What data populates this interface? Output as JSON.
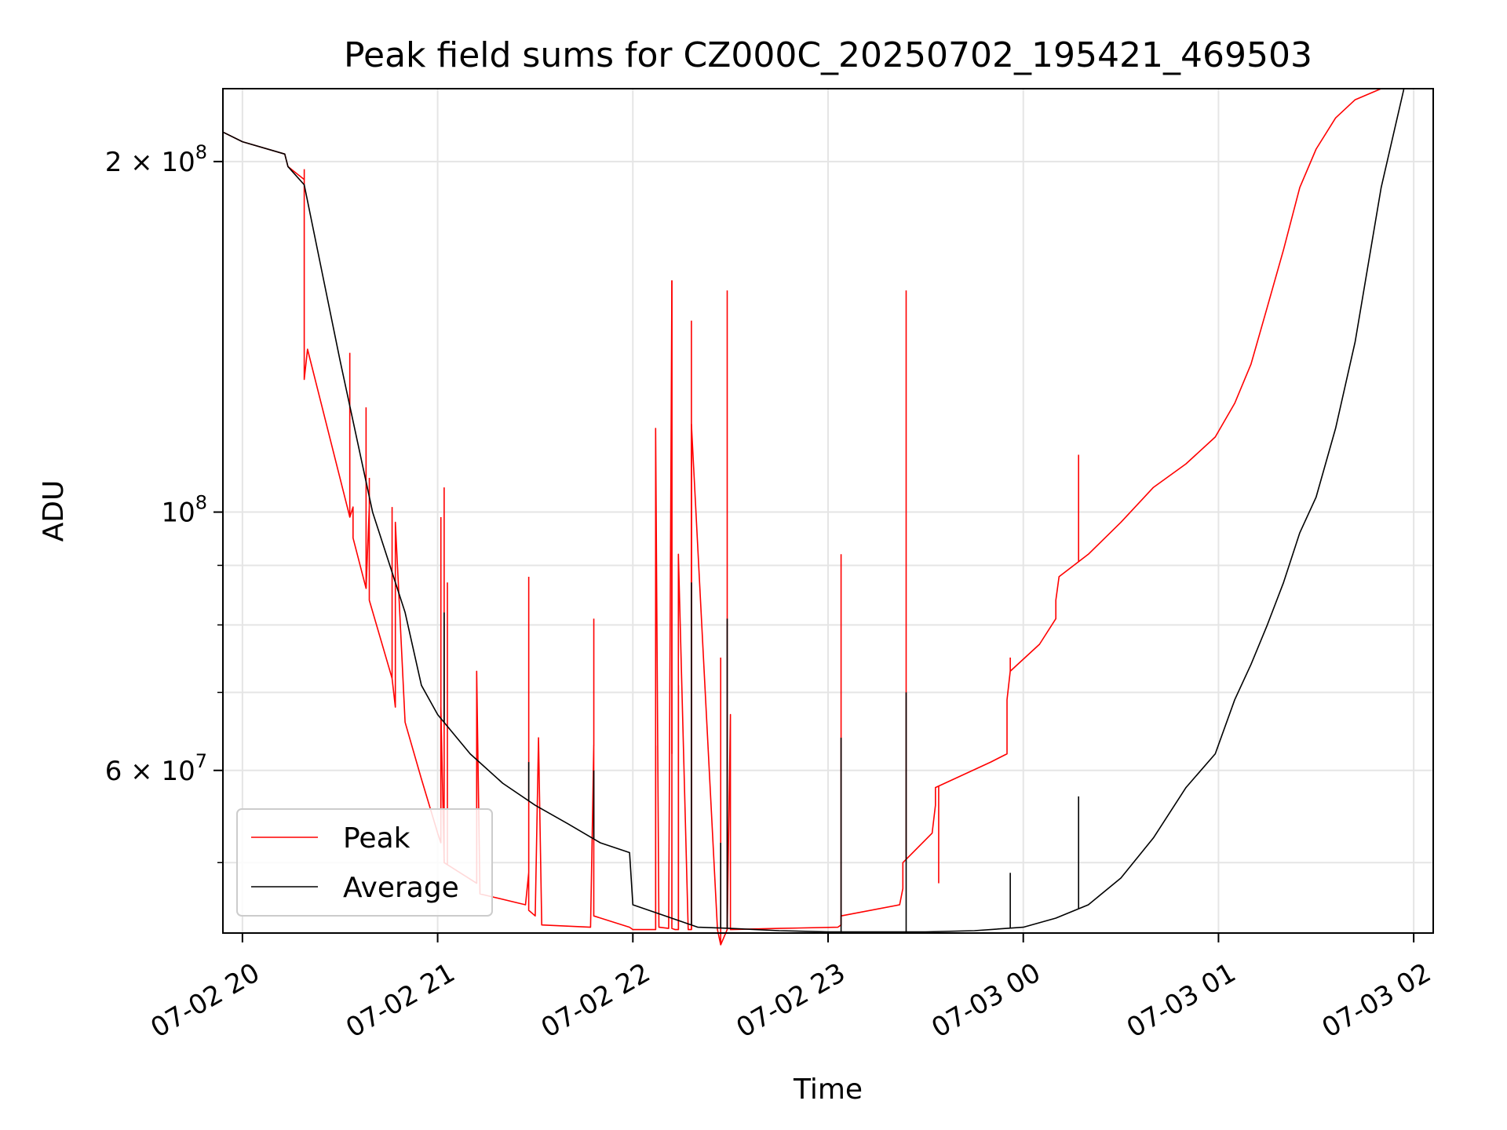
{
  "chart_data": {
    "type": "line",
    "title": "Peak field sums for CZ000C_20250702_195421_469503",
    "xlabel": "Time",
    "ylabel": "ADU",
    "x_scale": "time",
    "y_scale": "log",
    "xlim": [
      "2025-07-02 19:54",
      "2025-07-03 02:06"
    ],
    "ylim": [
      43500000,
      231000000
    ],
    "x_ticks": [
      {
        "value": "2025-07-02 20:00",
        "label": "07-02 20"
      },
      {
        "value": "2025-07-02 21:00",
        "label": "07-02 21"
      },
      {
        "value": "2025-07-02 22:00",
        "label": "07-02 22"
      },
      {
        "value": "2025-07-02 23:00",
        "label": "07-02 23"
      },
      {
        "value": "2025-07-03 00:00",
        "label": "07-03 00"
      },
      {
        "value": "2025-07-03 01:00",
        "label": "07-03 01"
      },
      {
        "value": "2025-07-03 02:00",
        "label": "07-03 02"
      }
    ],
    "y_major_ticks": [
      {
        "value": 100000000,
        "base": "10",
        "exp": "8"
      },
      {
        "value": 200000000,
        "base": "2 × 10",
        "exp": "8"
      },
      {
        "value": 60000000,
        "base": "6 × 10",
        "exp": "7"
      }
    ],
    "y_minor_ticks": [
      50000000,
      70000000,
      80000000,
      90000000
    ],
    "grid": true,
    "legend": {
      "position": "lower-left",
      "entries": [
        "Peak",
        "Average"
      ]
    },
    "series": [
      {
        "name": "Peak",
        "color": "#ff0000",
        "x": [
          "2025-07-02 19:54",
          "2025-07-02 20:00",
          "2025-07-02 20:13",
          "2025-07-02 20:14",
          "2025-07-02 20:19",
          "2025-07-02 20:19",
          "2025-07-02 20:20",
          "2025-07-02 20:33",
          "2025-07-02 20:34",
          "2025-07-02 20:34",
          "2025-07-02 20:38",
          "2025-07-02 20:39",
          "2025-07-02 20:39",
          "2025-07-02 20:46",
          "2025-07-02 20:47",
          "2025-07-02 20:47",
          "2025-07-02 20:50",
          "2025-07-02 20:55",
          "2025-07-02 21:00",
          "2025-07-02 21:01",
          "2025-07-02 21:01",
          "2025-07-02 21:02",
          "2025-07-02 21:12",
          "2025-07-02 21:12",
          "2025-07-02 21:13",
          "2025-07-02 21:27",
          "2025-07-02 21:28",
          "2025-07-02 21:28",
          "2025-07-02 21:30",
          "2025-07-02 21:31",
          "2025-07-02 21:32",
          "2025-07-02 21:47",
          "2025-07-02 21:48",
          "2025-07-02 21:48",
          "2025-07-02 21:59",
          "2025-07-02 22:00",
          "2025-07-02 22:07",
          "2025-07-02 22:07",
          "2025-07-02 22:08",
          "2025-07-02 22:11",
          "2025-07-02 22:12",
          "2025-07-02 22:12",
          "2025-07-02 22:13",
          "2025-07-02 22:14",
          "2025-07-02 22:14",
          "2025-07-02 22:17",
          "2025-07-02 22:18",
          "2025-07-02 22:18",
          "2025-07-02 22:26",
          "2025-07-02 22:26",
          "2025-07-02 22:27",
          "2025-07-02 22:29",
          "2025-07-02 22:30",
          "2025-07-02 22:30",
          "2025-07-02 22:45",
          "2025-07-02 23:03",
          "2025-07-02 23:04",
          "2025-07-02 23:04",
          "2025-07-02 23:22",
          "2025-07-02 23:23",
          "2025-07-02 23:23",
          "2025-07-02 23:32",
          "2025-07-02 23:33",
          "2025-07-02 23:33",
          "2025-07-02 23:50",
          "2025-07-02 23:55",
          "2025-07-02 23:55",
          "2025-07-02 23:56",
          "2025-07-03 00:05",
          "2025-07-03 00:10",
          "2025-07-03 00:10",
          "2025-07-03 00:11",
          "2025-07-03 00:20",
          "2025-07-03 00:30",
          "2025-07-03 00:40",
          "2025-07-03 00:50",
          "2025-07-03 00:59",
          "2025-07-03 01:05",
          "2025-07-03 01:10",
          "2025-07-03 01:15",
          "2025-07-03 01:20",
          "2025-07-03 01:25",
          "2025-07-03 01:30",
          "2025-07-03 01:36",
          "2025-07-03 01:42",
          "2025-07-03 01:50",
          "2025-07-03 01:57"
        ],
        "values": [
          212000000,
          208000000,
          203000000,
          198000000,
          193000000,
          130000000,
          138000000,
          99000000,
          101000000,
          95000000,
          86000000,
          101000000,
          84000000,
          72000000,
          68000000,
          98000000,
          66000000,
          59000000,
          53000000,
          52000000,
          68000000,
          50000000,
          48000000,
          73000000,
          47000000,
          46000000,
          49000000,
          45500000,
          45000000,
          64000000,
          44200000,
          44000000,
          63000000,
          45000000,
          44000000,
          43800000,
          43800000,
          118000000,
          44000000,
          43900000,
          158000000,
          43900000,
          43800000,
          43800000,
          92000000,
          43800000,
          43800000,
          119000000,
          43800000,
          43800000,
          42500000,
          43800000,
          67000000,
          43800000,
          43900000,
          44000000,
          44200000,
          45000000,
          46000000,
          47500000,
          50000000,
          53000000,
          56000000,
          58000000,
          61000000,
          62000000,
          69000000,
          73000000,
          77000000,
          81000000,
          84000000,
          88000000,
          92000000,
          98000000,
          105000000,
          110000000,
          116000000,
          124000000,
          134000000,
          150000000,
          168000000,
          190000000,
          205000000,
          218000000,
          226000000,
          231000000,
          231000000
        ],
        "spikes": [
          {
            "x": "2025-07-02 20:19",
            "value": 197000000
          },
          {
            "x": "2025-07-02 20:33",
            "value": 137000000
          },
          {
            "x": "2025-07-02 20:38",
            "value": 123000000
          },
          {
            "x": "2025-07-02 20:39",
            "value": 107000000
          },
          {
            "x": "2025-07-02 20:46",
            "value": 101000000
          },
          {
            "x": "2025-07-02 21:01",
            "value": 99000000
          },
          {
            "x": "2025-07-02 21:02",
            "value": 105000000
          },
          {
            "x": "2025-07-02 21:03",
            "value": 87000000
          },
          {
            "x": "2025-07-02 21:12",
            "value": 68000000
          },
          {
            "x": "2025-07-02 21:28",
            "value": 88000000
          },
          {
            "x": "2025-07-02 21:31",
            "value": 64000000
          },
          {
            "x": "2025-07-02 21:48",
            "value": 81000000
          },
          {
            "x": "2025-07-02 22:07",
            "value": 63000000
          },
          {
            "x": "2025-07-02 22:12",
            "value": 62000000
          },
          {
            "x": "2025-07-02 22:14",
            "value": 71000000
          },
          {
            "x": "2025-07-02 22:18",
            "value": 146000000
          },
          {
            "x": "2025-07-02 22:18",
            "value": 118000000
          },
          {
            "x": "2025-07-02 22:27",
            "value": 75000000
          },
          {
            "x": "2025-07-02 22:29",
            "value": 155000000
          },
          {
            "x": "2025-07-02 23:04",
            "value": 92000000
          },
          {
            "x": "2025-07-02 23:24",
            "value": 155000000
          },
          {
            "x": "2025-07-02 23:34",
            "value": 48000000
          },
          {
            "x": "2025-07-02 23:56",
            "value": 75000000
          },
          {
            "x": "2025-07-03 00:17",
            "value": 112000000
          }
        ]
      },
      {
        "name": "Average",
        "color": "#000000",
        "x": [
          "2025-07-02 19:54",
          "2025-07-02 20:00",
          "2025-07-02 20:13",
          "2025-07-02 20:14",
          "2025-07-02 20:19",
          "2025-07-02 20:30",
          "2025-07-02 20:40",
          "2025-07-02 20:50",
          "2025-07-02 20:55",
          "2025-07-02 21:00",
          "2025-07-02 21:10",
          "2025-07-02 21:20",
          "2025-07-02 21:30",
          "2025-07-02 21:40",
          "2025-07-02 21:50",
          "2025-07-02 21:59",
          "2025-07-02 22:00",
          "2025-07-02 22:10",
          "2025-07-02 22:20",
          "2025-07-02 22:30",
          "2025-07-02 22:45",
          "2025-07-02 23:00",
          "2025-07-02 23:15",
          "2025-07-02 23:30",
          "2025-07-02 23:45",
          "2025-07-03 00:00",
          "2025-07-03 00:10",
          "2025-07-03 00:20",
          "2025-07-03 00:30",
          "2025-07-03 00:40",
          "2025-07-03 00:50",
          "2025-07-03 00:59",
          "2025-07-03 01:05",
          "2025-07-03 01:10",
          "2025-07-03 01:15",
          "2025-07-03 01:20",
          "2025-07-03 01:25",
          "2025-07-03 01:30",
          "2025-07-03 01:36",
          "2025-07-03 01:42",
          "2025-07-03 01:50",
          "2025-07-03 01:57"
        ],
        "values": [
          212000000,
          208000000,
          203000000,
          198000000,
          191000000,
          135000000,
          100000000,
          82000000,
          71000000,
          67000000,
          62000000,
          58500000,
          56000000,
          54000000,
          52000000,
          51000000,
          46000000,
          45000000,
          44000000,
          43900000,
          43700000,
          43600000,
          43600000,
          43600000,
          43700000,
          44000000,
          44800000,
          46000000,
          48500000,
          52500000,
          58000000,
          62000000,
          69000000,
          74000000,
          80000000,
          87000000,
          96000000,
          103000000,
          118000000,
          140000000,
          190000000,
          231000000
        ],
        "spikes": [
          {
            "x": "2025-07-02 21:02",
            "value": 82000000
          },
          {
            "x": "2025-07-02 21:28",
            "value": 61000000
          },
          {
            "x": "2025-07-02 21:48",
            "value": 60000000
          },
          {
            "x": "2025-07-02 22:18",
            "value": 87000000
          },
          {
            "x": "2025-07-02 22:27",
            "value": 52000000
          },
          {
            "x": "2025-07-02 22:29",
            "value": 81000000
          },
          {
            "x": "2025-07-02 23:04",
            "value": 64000000
          },
          {
            "x": "2025-07-02 23:24",
            "value": 70000000
          },
          {
            "x": "2025-07-02 23:56",
            "value": 49000000
          },
          {
            "x": "2025-07-03 00:17",
            "value": 57000000
          }
        ]
      }
    ]
  }
}
